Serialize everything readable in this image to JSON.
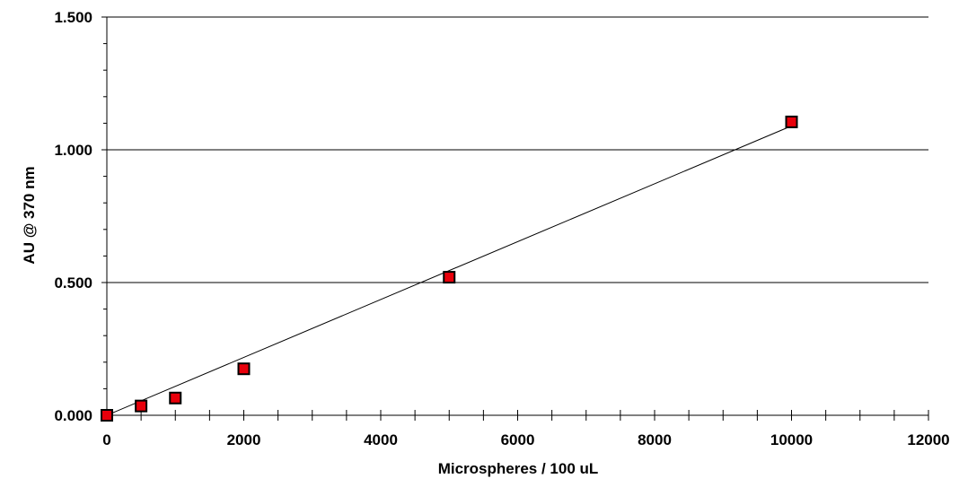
{
  "chart_data": {
    "type": "scatter",
    "title": "",
    "xlabel": "Microspheres / 100 uL",
    "ylabel": "AU @ 370 nm",
    "xlim": [
      0,
      12000
    ],
    "ylim": [
      0,
      1.5
    ],
    "x_ticks": [
      0,
      2000,
      4000,
      6000,
      8000,
      10000,
      12000
    ],
    "x_tick_labels": [
      "0",
      "2000",
      "4000",
      "6000",
      "8000",
      "10000",
      "12000"
    ],
    "y_ticks": [
      0,
      0.5,
      1.0,
      1.5
    ],
    "y_tick_labels": [
      "0.000",
      "0.500",
      "1.000",
      "1.500"
    ],
    "grid": "horizontal major gridlines",
    "legend": "none",
    "series": [
      {
        "type": "scatter",
        "marker": "square",
        "color": "#e8000b",
        "x": [
          0,
          500,
          1000,
          2000,
          5000,
          10000
        ],
        "y": [
          0.0,
          0.035,
          0.065,
          0.175,
          0.52,
          1.105
        ]
      }
    ],
    "trendline": {
      "type": "linear",
      "color": "#000000",
      "x": [
        0,
        10000
      ],
      "y": [
        0.0,
        1.09
      ]
    }
  }
}
